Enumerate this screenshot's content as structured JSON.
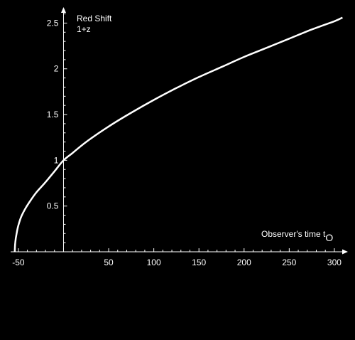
{
  "chart_data": {
    "type": "line",
    "ylabel_line1": "Red Shift",
    "ylabel_line2": "1+z",
    "xlabel_main": "Observer's time t",
    "xlabel_sub": "O",
    "xlim": [
      -57,
      315
    ],
    "ylim": [
      0,
      2.62
    ],
    "x_ticks": [
      -50,
      50,
      100,
      150,
      200,
      250,
      300
    ],
    "y_ticks": [
      "0.5",
      "1",
      "1.5",
      "2",
      "2.5"
    ],
    "y_tick_values": [
      0.5,
      1,
      1.5,
      2,
      2.5
    ],
    "grid": false,
    "line_color": "#ffffff",
    "background": "#000000",
    "series": [
      {
        "x": [
          -54,
          -53.5,
          -52,
          -50,
          -47,
          -43,
          -38,
          -30,
          -20,
          -10,
          0,
          10,
          25,
          50,
          75,
          100,
          125,
          150,
          175,
          200,
          225,
          250,
          275,
          300,
          309
        ],
        "y": [
          0.0,
          0.1,
          0.2,
          0.29,
          0.38,
          0.46,
          0.54,
          0.65,
          0.76,
          0.88,
          1.0,
          1.08,
          1.2,
          1.37,
          1.52,
          1.66,
          1.79,
          1.91,
          2.02,
          2.13,
          2.23,
          2.33,
          2.43,
          2.52,
          2.56
        ]
      }
    ]
  }
}
